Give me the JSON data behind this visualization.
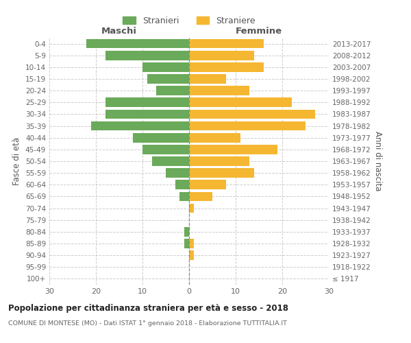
{
  "age_groups": [
    "100+",
    "95-99",
    "90-94",
    "85-89",
    "80-84",
    "75-79",
    "70-74",
    "65-69",
    "60-64",
    "55-59",
    "50-54",
    "45-49",
    "40-44",
    "35-39",
    "30-34",
    "25-29",
    "20-24",
    "15-19",
    "10-14",
    "5-9",
    "0-4"
  ],
  "birth_years": [
    "≤ 1917",
    "1918-1922",
    "1923-1927",
    "1928-1932",
    "1933-1937",
    "1938-1942",
    "1943-1947",
    "1948-1952",
    "1953-1957",
    "1958-1962",
    "1963-1967",
    "1968-1972",
    "1973-1977",
    "1978-1982",
    "1983-1987",
    "1988-1992",
    "1993-1997",
    "1998-2002",
    "2003-2007",
    "2008-2012",
    "2013-2017"
  ],
  "males": [
    0,
    0,
    0,
    1,
    1,
    0,
    0,
    2,
    3,
    5,
    8,
    10,
    12,
    21,
    18,
    18,
    7,
    9,
    10,
    18,
    22
  ],
  "females": [
    0,
    0,
    1,
    1,
    0,
    0,
    1,
    5,
    8,
    14,
    13,
    19,
    11,
    25,
    27,
    22,
    13,
    8,
    16,
    14,
    16
  ],
  "male_color": "#6aaa5a",
  "female_color": "#f5b731",
  "background_color": "#ffffff",
  "grid_color": "#cccccc",
  "title": "Popolazione per cittadinanza straniera per età e sesso - 2018",
  "subtitle": "COMUNE DI MONTESE (MO) - Dati ISTAT 1° gennaio 2018 - Elaborazione TUTTITALIA.IT",
  "xlabel_left": "Maschi",
  "xlabel_right": "Femmine",
  "ylabel_left": "Fasce di età",
  "ylabel_right": "Anni di nascita",
  "legend_male": "Stranieri",
  "legend_female": "Straniere",
  "xlim": 30,
  "bar_height": 0.8
}
